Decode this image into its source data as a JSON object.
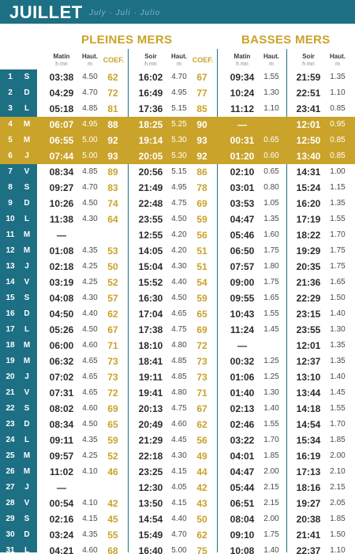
{
  "header": {
    "month": "JUILLET",
    "subtitle": "July · Juli · Julio"
  },
  "sections": {
    "high": "PLEINES MERS",
    "low": "BASSES MERS"
  },
  "columns": {
    "matin": "Matin",
    "soir": "Soir",
    "haut": "Haut.",
    "coef": "COEF.",
    "hm": "h mn",
    "m": "m"
  },
  "highlight_days": [
    4,
    5,
    6
  ],
  "colors": {
    "teal": "#1d6f84",
    "gold": "#c9a32a"
  },
  "rows": [
    {
      "d": "1",
      "w": "S",
      "mt": "03:38",
      "mh": "4.50",
      "mc": "62",
      "st": "16:02",
      "sh": "4.70",
      "sc": "67",
      "bmt": "09:34",
      "bmh": "1.55",
      "bst": "21:59",
      "bsh": "1.35"
    },
    {
      "d": "2",
      "w": "D",
      "mt": "04:29",
      "mh": "4.70",
      "mc": "72",
      "st": "16:49",
      "sh": "4.95",
      "sc": "77",
      "bmt": "10:24",
      "bmh": "1.30",
      "bst": "22:51",
      "bsh": "1.10"
    },
    {
      "d": "3",
      "w": "L",
      "mt": "05:18",
      "mh": "4.85",
      "mc": "81",
      "st": "17:36",
      "sh": "5.15",
      "sc": "85",
      "bmt": "11:12",
      "bmh": "1.10",
      "bst": "23:41",
      "bsh": "0.85"
    },
    {
      "d": "4",
      "w": "M",
      "mt": "06:07",
      "mh": "4.95",
      "mc": "88",
      "st": "18:25",
      "sh": "5.25",
      "sc": "90",
      "bmt": "—",
      "bmh": "",
      "bst": "12:01",
      "bsh": "0.95"
    },
    {
      "d": "5",
      "w": "M",
      "mt": "06:55",
      "mh": "5.00",
      "mc": "92",
      "st": "19:14",
      "sh": "5.30",
      "sc": "93",
      "bmt": "00:31",
      "bmh": "0.65",
      "bst": "12:50",
      "bsh": "0.85"
    },
    {
      "d": "6",
      "w": "J",
      "mt": "07:44",
      "mh": "5.00",
      "mc": "93",
      "st": "20:05",
      "sh": "5.30",
      "sc": "92",
      "bmt": "01:20",
      "bmh": "0.60",
      "bst": "13:40",
      "bsh": "0.85"
    },
    {
      "d": "7",
      "w": "V",
      "mt": "08:34",
      "mh": "4.85",
      "mc": "89",
      "st": "20:56",
      "sh": "5.15",
      "sc": "86",
      "bmt": "02:10",
      "bmh": "0.65",
      "bst": "14:31",
      "bsh": "1.00"
    },
    {
      "d": "8",
      "w": "S",
      "mt": "09:27",
      "mh": "4.70",
      "mc": "83",
      "st": "21:49",
      "sh": "4.95",
      "sc": "78",
      "bmt": "03:01",
      "bmh": "0.80",
      "bst": "15:24",
      "bsh": "1.15"
    },
    {
      "d": "9",
      "w": "D",
      "mt": "10:26",
      "mh": "4.50",
      "mc": "74",
      "st": "22:48",
      "sh": "4.75",
      "sc": "69",
      "bmt": "03:53",
      "bmh": "1.05",
      "bst": "16:20",
      "bsh": "1.35"
    },
    {
      "d": "10",
      "w": "L",
      "mt": "11:38",
      "mh": "4.30",
      "mc": "64",
      "st": "23:55",
      "sh": "4.50",
      "sc": "59",
      "bmt": "04:47",
      "bmh": "1.35",
      "bst": "17:19",
      "bsh": "1.55"
    },
    {
      "d": "11",
      "w": "M",
      "mt": "—",
      "mh": "",
      "mc": "",
      "st": "12:55",
      "sh": "4.20",
      "sc": "56",
      "bmt": "05:46",
      "bmh": "1.60",
      "bst": "18:22",
      "bsh": "1.70"
    },
    {
      "d": "12",
      "w": "M",
      "mt": "01:08",
      "mh": "4.35",
      "mc": "53",
      "st": "14:05",
      "sh": "4.20",
      "sc": "51",
      "bmt": "06:50",
      "bmh": "1.75",
      "bst": "19:29",
      "bsh": "1.75"
    },
    {
      "d": "13",
      "w": "J",
      "mt": "02:18",
      "mh": "4.25",
      "mc": "50",
      "st": "15:04",
      "sh": "4.30",
      "sc": "51",
      "bmt": "07:57",
      "bmh": "1.80",
      "bst": "20:35",
      "bsh": "1.75"
    },
    {
      "d": "14",
      "w": "V",
      "mt": "03:19",
      "mh": "4.25",
      "mc": "52",
      "st": "15:52",
      "sh": "4.40",
      "sc": "54",
      "bmt": "09:00",
      "bmh": "1.75",
      "bst": "21:36",
      "bsh": "1.65"
    },
    {
      "d": "15",
      "w": "S",
      "mt": "04:08",
      "mh": "4.30",
      "mc": "57",
      "st": "16:30",
      "sh": "4.50",
      "sc": "59",
      "bmt": "09:55",
      "bmh": "1.65",
      "bst": "22:29",
      "bsh": "1.50"
    },
    {
      "d": "16",
      "w": "D",
      "mt": "04:50",
      "mh": "4.40",
      "mc": "62",
      "st": "17:04",
      "sh": "4.65",
      "sc": "65",
      "bmt": "10:43",
      "bmh": "1.55",
      "bst": "23:15",
      "bsh": "1.40"
    },
    {
      "d": "17",
      "w": "L",
      "mt": "05:26",
      "mh": "4.50",
      "mc": "67",
      "st": "17:38",
      "sh": "4.75",
      "sc": "69",
      "bmt": "11:24",
      "bmh": "1.45",
      "bst": "23:55",
      "bsh": "1.30"
    },
    {
      "d": "18",
      "w": "M",
      "mt": "06:00",
      "mh": "4.60",
      "mc": "71",
      "st": "18:10",
      "sh": "4.80",
      "sc": "72",
      "bmt": "—",
      "bmh": "",
      "bst": "12:01",
      "bsh": "1.35"
    },
    {
      "d": "19",
      "w": "M",
      "mt": "06:32",
      "mh": "4.65",
      "mc": "73",
      "st": "18:41",
      "sh": "4.85",
      "sc": "73",
      "bmt": "00:32",
      "bmh": "1.25",
      "bst": "12:37",
      "bsh": "1.35"
    },
    {
      "d": "20",
      "w": "J",
      "mt": "07:02",
      "mh": "4.65",
      "mc": "73",
      "st": "19:11",
      "sh": "4.85",
      "sc": "73",
      "bmt": "01:06",
      "bmh": "1.25",
      "bst": "13:10",
      "bsh": "1.40"
    },
    {
      "d": "21",
      "w": "V",
      "mt": "07:31",
      "mh": "4.65",
      "mc": "72",
      "st": "19:41",
      "sh": "4.80",
      "sc": "71",
      "bmt": "01:40",
      "bmh": "1.30",
      "bst": "13:44",
      "bsh": "1.45"
    },
    {
      "d": "22",
      "w": "S",
      "mt": "08:02",
      "mh": "4.60",
      "mc": "69",
      "st": "20:13",
      "sh": "4.75",
      "sc": "67",
      "bmt": "02:13",
      "bmh": "1.40",
      "bst": "14:18",
      "bsh": "1.55"
    },
    {
      "d": "23",
      "w": "D",
      "mt": "08:34",
      "mh": "4.50",
      "mc": "65",
      "st": "20:49",
      "sh": "4.60",
      "sc": "62",
      "bmt": "02:46",
      "bmh": "1.55",
      "bst": "14:54",
      "bsh": "1.70"
    },
    {
      "d": "24",
      "w": "L",
      "mt": "09:11",
      "mh": "4.35",
      "mc": "59",
      "st": "21:29",
      "sh": "4.45",
      "sc": "56",
      "bmt": "03:22",
      "bmh": "1.70",
      "bst": "15:34",
      "bsh": "1.85"
    },
    {
      "d": "25",
      "w": "M",
      "mt": "09:57",
      "mh": "4.25",
      "mc": "52",
      "st": "22:18",
      "sh": "4.30",
      "sc": "49",
      "bmt": "04:01",
      "bmh": "1.85",
      "bst": "16:19",
      "bsh": "2.00"
    },
    {
      "d": "26",
      "w": "M",
      "mt": "11:02",
      "mh": "4.10",
      "mc": "46",
      "st": "23:25",
      "sh": "4.15",
      "sc": "44",
      "bmt": "04:47",
      "bmh": "2.00",
      "bst": "17:13",
      "bsh": "2.10"
    },
    {
      "d": "27",
      "w": "J",
      "mt": "—",
      "mh": "",
      "mc": "",
      "st": "12:30",
      "sh": "4.05",
      "sc": "42",
      "bmt": "05:44",
      "bmh": "2.15",
      "bst": "18:16",
      "bsh": "2.15"
    },
    {
      "d": "28",
      "w": "V",
      "mt": "00:54",
      "mh": "4.10",
      "mc": "42",
      "st": "13:50",
      "sh": "4.15",
      "sc": "43",
      "bmt": "06:51",
      "bmh": "2.15",
      "bst": "19:27",
      "bsh": "2.05"
    },
    {
      "d": "29",
      "w": "S",
      "mt": "02:16",
      "mh": "4.15",
      "mc": "45",
      "st": "14:54",
      "sh": "4.40",
      "sc": "50",
      "bmt": "08:04",
      "bmh": "2.00",
      "bst": "20:38",
      "bsh": "1.85"
    },
    {
      "d": "30",
      "w": "D",
      "mt": "03:24",
      "mh": "4.35",
      "mc": "55",
      "st": "15:49",
      "sh": "4.70",
      "sc": "62",
      "bmt": "09:10",
      "bmh": "1.75",
      "bst": "21:41",
      "bsh": "1.50"
    },
    {
      "d": "31",
      "w": "L",
      "mt": "04:21",
      "mh": "4.60",
      "mc": "68",
      "st": "16:40",
      "sh": "5.00",
      "sc": "75",
      "bmt": "10:08",
      "bmh": "1.40",
      "bst": "22:37",
      "bsh": "1.10"
    }
  ]
}
